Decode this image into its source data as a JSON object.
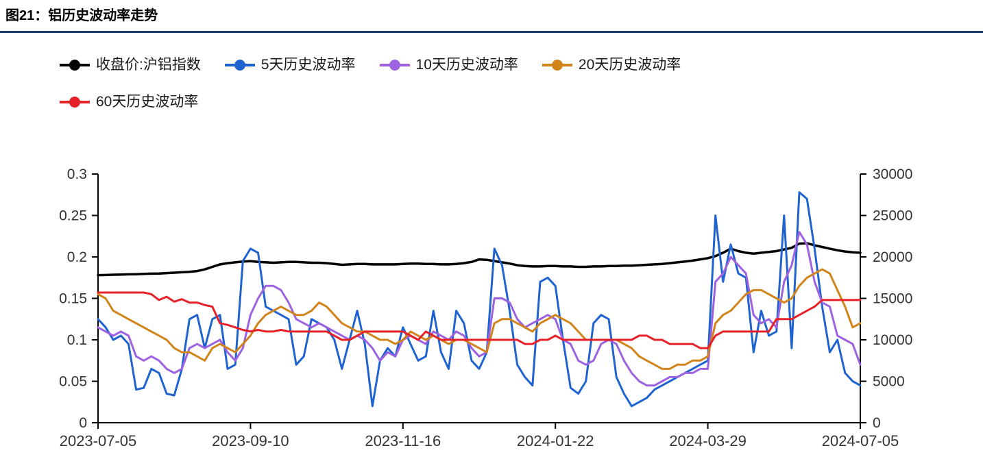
{
  "figure": {
    "title": "图21：铝历史波动率走势",
    "rule_color": "#1f3864"
  },
  "legend": {
    "items": [
      {
        "label": "收盘价:沪铝指数",
        "color": "#000000",
        "key": "close-price"
      },
      {
        "label": "5天历史波动率",
        "color": "#1f63d0",
        "key": "hv5"
      },
      {
        "label": "10天历史波动率",
        "color": "#9d62e0",
        "key": "hv10"
      },
      {
        "label": "20天历史波动率",
        "color": "#d0841a",
        "key": "hv20"
      },
      {
        "label": "60天历史波动率",
        "color": "#e62129",
        "key": "hv60"
      }
    ]
  },
  "chart_data": {
    "type": "line",
    "title": "铝历史波动率走势",
    "x_range": [
      "2023-07-05",
      "2024-07-05"
    ],
    "x_tick_labels": [
      "2023-07-05",
      "2023-09-10",
      "2023-11-16",
      "2024-01-22",
      "2024-03-29",
      "2024-07-05"
    ],
    "left_axis": {
      "min": 0,
      "max": 0.3,
      "tick_labels": [
        "0",
        "0.05",
        "0.1",
        "0.15",
        "0.2",
        "0.25",
        "0.3"
      ],
      "ticks": [
        0,
        0.05,
        0.1,
        0.15,
        0.2,
        0.25,
        0.3
      ]
    },
    "right_axis": {
      "min": 0,
      "max": 30000,
      "tick_labels": [
        "0",
        "5000",
        "10000",
        "15000",
        "20000",
        "25000",
        "30000"
      ],
      "ticks": [
        0,
        5000,
        10000,
        15000,
        20000,
        25000,
        30000
      ]
    },
    "grid": false,
    "legend_position": "top-left",
    "series": [
      {
        "name": "收盘价:沪铝指数",
        "key": "close-price",
        "axis": "right",
        "color": "#000000",
        "width": 3.5,
        "values": [
          17800,
          17820,
          17850,
          17880,
          17900,
          17920,
          17950,
          17980,
          18000,
          18050,
          18100,
          18150,
          18200,
          18300,
          18500,
          18800,
          19100,
          19250,
          19350,
          19450,
          19500,
          19400,
          19350,
          19300,
          19350,
          19400,
          19400,
          19350,
          19300,
          19300,
          19250,
          19150,
          19050,
          19100,
          19150,
          19150,
          19100,
          19100,
          19100,
          19100,
          19150,
          19200,
          19200,
          19150,
          19150,
          19100,
          19100,
          19150,
          19250,
          19400,
          19700,
          19650,
          19500,
          19350,
          19200,
          19000,
          18900,
          18850,
          18850,
          18900,
          18900,
          18850,
          18850,
          18800,
          18800,
          18850,
          18850,
          18900,
          18900,
          18950,
          18950,
          19000,
          19050,
          19100,
          19150,
          19250,
          19350,
          19450,
          19550,
          19700,
          19850,
          20100,
          20500,
          21000,
          20700,
          20500,
          20400,
          20500,
          20600,
          20700,
          20900,
          21100,
          21600,
          21650,
          21400,
          21200,
          21000,
          20800,
          20650,
          20550,
          20500
        ]
      },
      {
        "name": "5天历史波动率",
        "key": "hv5",
        "axis": "left",
        "color": "#1f63d0",
        "width": 3,
        "values": [
          0.125,
          0.115,
          0.1,
          0.105,
          0.095,
          0.04,
          0.042,
          0.065,
          0.06,
          0.035,
          0.033,
          0.065,
          0.125,
          0.13,
          0.09,
          0.125,
          0.13,
          0.065,
          0.07,
          0.195,
          0.21,
          0.205,
          0.14,
          0.135,
          0.13,
          0.125,
          0.07,
          0.08,
          0.125,
          0.12,
          0.115,
          0.1,
          0.065,
          0.1,
          0.135,
          0.095,
          0.02,
          0.075,
          0.09,
          0.08,
          0.115,
          0.095,
          0.075,
          0.08,
          0.135,
          0.085,
          0.065,
          0.135,
          0.12,
          0.075,
          0.065,
          0.085,
          0.21,
          0.19,
          0.135,
          0.07,
          0.055,
          0.045,
          0.17,
          0.175,
          0.165,
          0.1,
          0.042,
          0.035,
          0.05,
          0.12,
          0.13,
          0.125,
          0.055,
          0.035,
          0.02,
          0.025,
          0.03,
          0.04,
          0.045,
          0.05,
          0.055,
          0.06,
          0.065,
          0.07,
          0.075,
          0.25,
          0.17,
          0.215,
          0.18,
          0.175,
          0.085,
          0.135,
          0.105,
          0.11,
          0.25,
          0.09,
          0.278,
          0.27,
          0.21,
          0.14,
          0.085,
          0.1,
          0.06,
          0.05,
          0.045
        ]
      },
      {
        "name": "10天历史波动率",
        "key": "hv10",
        "axis": "left",
        "color": "#9d62e0",
        "width": 3,
        "values": [
          0.115,
          0.11,
          0.105,
          0.11,
          0.105,
          0.08,
          0.075,
          0.08,
          0.075,
          0.065,
          0.06,
          0.065,
          0.09,
          0.095,
          0.09,
          0.095,
          0.1,
          0.085,
          0.075,
          0.09,
          0.13,
          0.15,
          0.165,
          0.165,
          0.16,
          0.145,
          0.125,
          0.12,
          0.115,
          0.12,
          0.115,
          0.11,
          0.105,
          0.1,
          0.105,
          0.1,
          0.09,
          0.075,
          0.085,
          0.08,
          0.1,
          0.105,
          0.1,
          0.095,
          0.11,
          0.105,
          0.1,
          0.11,
          0.105,
          0.09,
          0.08,
          0.085,
          0.15,
          0.15,
          0.145,
          0.125,
          0.115,
          0.12,
          0.125,
          0.13,
          0.125,
          0.1,
          0.095,
          0.075,
          0.07,
          0.075,
          0.095,
          0.1,
          0.095,
          0.075,
          0.06,
          0.05,
          0.045,
          0.045,
          0.05,
          0.055,
          0.055,
          0.06,
          0.06,
          0.065,
          0.065,
          0.17,
          0.18,
          0.2,
          0.19,
          0.18,
          0.13,
          0.12,
          0.125,
          0.115,
          0.17,
          0.19,
          0.23,
          0.215,
          0.17,
          0.145,
          0.14,
          0.105,
          0.1,
          0.095,
          0.07
        ]
      },
      {
        "name": "20天历史波动率",
        "key": "hv20",
        "axis": "left",
        "color": "#d0841a",
        "width": 3,
        "values": [
          0.155,
          0.15,
          0.135,
          0.13,
          0.125,
          0.12,
          0.115,
          0.11,
          0.105,
          0.1,
          0.09,
          0.085,
          0.085,
          0.08,
          0.075,
          0.09,
          0.095,
          0.09,
          0.085,
          0.095,
          0.105,
          0.12,
          0.13,
          0.135,
          0.14,
          0.135,
          0.13,
          0.13,
          0.135,
          0.145,
          0.14,
          0.13,
          0.12,
          0.115,
          0.11,
          0.11,
          0.105,
          0.1,
          0.1,
          0.095,
          0.1,
          0.11,
          0.105,
          0.1,
          0.105,
          0.1,
          0.095,
          0.1,
          0.1,
          0.095,
          0.09,
          0.085,
          0.12,
          0.125,
          0.125,
          0.12,
          0.115,
          0.11,
          0.12,
          0.125,
          0.13,
          0.125,
          0.12,
          0.11,
          0.1,
          0.1,
          0.1,
          0.1,
          0.1,
          0.095,
          0.09,
          0.08,
          0.075,
          0.07,
          0.065,
          0.065,
          0.07,
          0.07,
          0.075,
          0.075,
          0.08,
          0.12,
          0.13,
          0.135,
          0.145,
          0.155,
          0.16,
          0.16,
          0.155,
          0.15,
          0.145,
          0.15,
          0.165,
          0.175,
          0.18,
          0.185,
          0.18,
          0.16,
          0.14,
          0.115,
          0.12
        ]
      },
      {
        "name": "60天历史波动率",
        "key": "hv60",
        "axis": "left",
        "color": "#e62129",
        "width": 3,
        "values": [
          0.157,
          0.157,
          0.157,
          0.157,
          0.157,
          0.157,
          0.157,
          0.155,
          0.148,
          0.152,
          0.146,
          0.149,
          0.145,
          0.145,
          0.142,
          0.14,
          0.12,
          0.118,
          0.115,
          0.112,
          0.11,
          0.112,
          0.11,
          0.11,
          0.112,
          0.11,
          0.11,
          0.11,
          0.11,
          0.11,
          0.11,
          0.105,
          0.1,
          0.1,
          0.105,
          0.11,
          0.11,
          0.11,
          0.11,
          0.11,
          0.11,
          0.105,
          0.1,
          0.11,
          0.105,
          0.1,
          0.1,
          0.1,
          0.1,
          0.1,
          0.1,
          0.1,
          0.1,
          0.1,
          0.1,
          0.1,
          0.095,
          0.095,
          0.1,
          0.1,
          0.105,
          0.1,
          0.1,
          0.1,
          0.1,
          0.1,
          0.1,
          0.1,
          0.1,
          0.1,
          0.1,
          0.105,
          0.105,
          0.1,
          0.1,
          0.095,
          0.095,
          0.095,
          0.095,
          0.09,
          0.09,
          0.105,
          0.11,
          0.11,
          0.11,
          0.11,
          0.11,
          0.11,
          0.11,
          0.125,
          0.125,
          0.125,
          0.13,
          0.135,
          0.14,
          0.148,
          0.148,
          0.148,
          0.148,
          0.148,
          0.148
        ]
      }
    ]
  }
}
